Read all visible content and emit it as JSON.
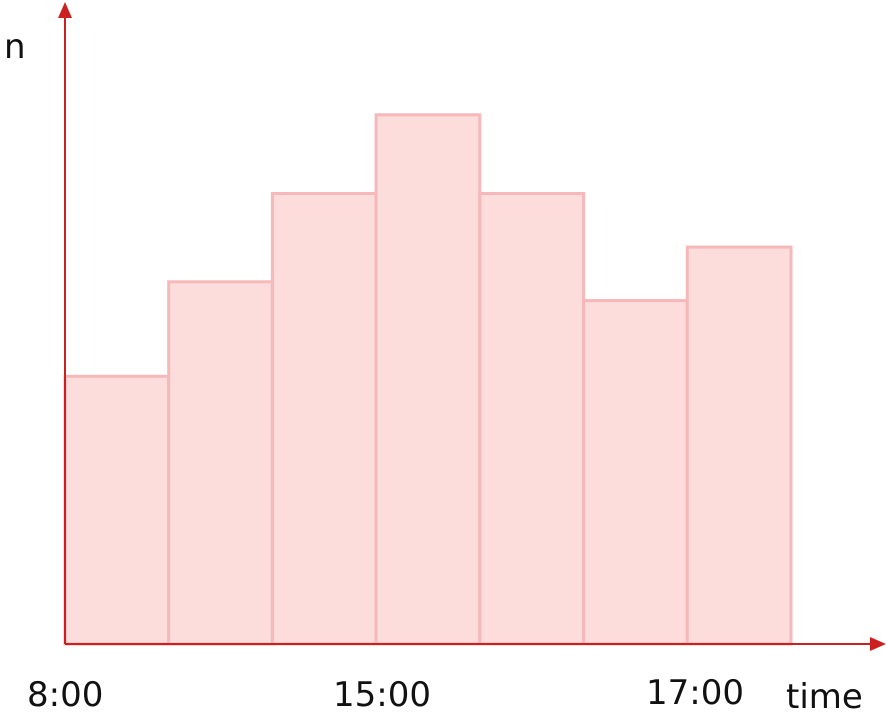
{
  "chart_data": {
    "type": "bar",
    "title": "",
    "ylabel": "n",
    "xlabel": "time",
    "bins": 7,
    "values": [
      8.5,
      11.5,
      14.3,
      16.8,
      14.3,
      10.9,
      12.6
    ],
    "ylim": [
      0,
      20
    ],
    "x_tick_labels": [
      "8:00",
      "15:00",
      "17:00"
    ],
    "grid": false,
    "colors": {
      "bar_fill": "#fddcdc",
      "bar_edge": "#f6b8b8",
      "axis": "#cc1f1f"
    }
  }
}
